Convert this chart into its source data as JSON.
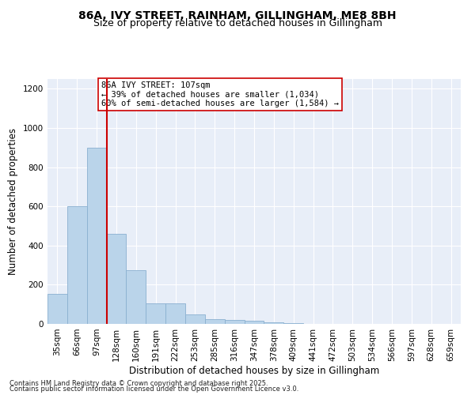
{
  "title1": "86A, IVY STREET, RAINHAM, GILLINGHAM, ME8 8BH",
  "title2": "Size of property relative to detached houses in Gillingham",
  "xlabel": "Distribution of detached houses by size in Gillingham",
  "ylabel": "Number of detached properties",
  "categories": [
    "35sqm",
    "66sqm",
    "97sqm",
    "128sqm",
    "160sqm",
    "191sqm",
    "222sqm",
    "253sqm",
    "285sqm",
    "316sqm",
    "347sqm",
    "378sqm",
    "409sqm",
    "441sqm",
    "472sqm",
    "503sqm",
    "534sqm",
    "566sqm",
    "597sqm",
    "628sqm",
    "659sqm"
  ],
  "values": [
    155,
    600,
    900,
    460,
    275,
    105,
    105,
    50,
    25,
    20,
    15,
    10,
    5,
    0,
    0,
    0,
    0,
    0,
    0,
    0,
    0
  ],
  "bar_color": "#bad4ea",
  "bar_edge_color": "#8ab0d0",
  "vline_color": "#cc0000",
  "annotation_text": "86A IVY STREET: 107sqm\n← 39% of detached houses are smaller (1,034)\n60% of semi-detached houses are larger (1,584) →",
  "annotation_box_color": "#ffffff",
  "annotation_box_edge": "#cc0000",
  "ylim": [
    0,
    1250
  ],
  "yticks": [
    0,
    200,
    400,
    600,
    800,
    1000,
    1200
  ],
  "bg_color": "#e8eef8",
  "footer1": "Contains HM Land Registry data © Crown copyright and database right 2025.",
  "footer2": "Contains public sector information licensed under the Open Government Licence v3.0.",
  "title1_fontsize": 10,
  "title2_fontsize": 9,
  "xlabel_fontsize": 8.5,
  "ylabel_fontsize": 8.5,
  "tick_fontsize": 7.5,
  "footer_fontsize": 6.0
}
